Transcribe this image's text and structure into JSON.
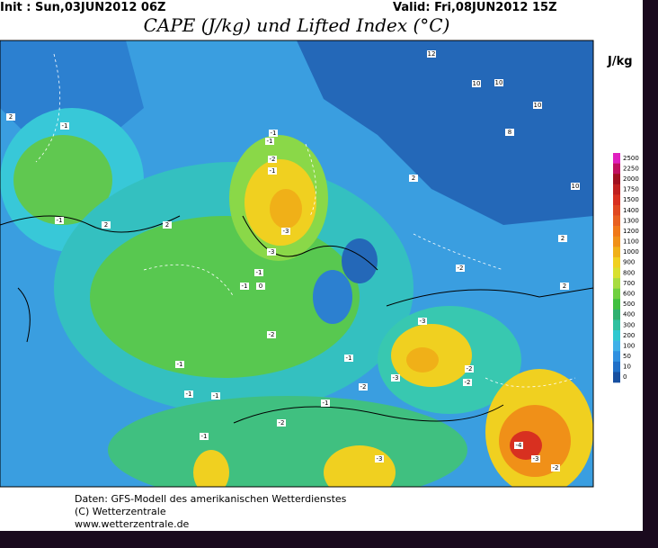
{
  "header": {
    "init": "Init : Sun,03JUN2012 06Z",
    "valid": "Valid: Fri,08JUN2012 15Z",
    "title": "CAPE (J/kg) und Lifted Index (°C)"
  },
  "legend": {
    "unit": "J/kg",
    "levels": [
      2500,
      2250,
      2000,
      1750,
      1500,
      1400,
      1300,
      1200,
      1100,
      1000,
      900,
      800,
      700,
      600,
      500,
      400,
      300,
      200,
      100,
      50,
      10,
      0
    ],
    "colors": [
      "#e020c0",
      "#c01060",
      "#a01020",
      "#c02020",
      "#d83020",
      "#e04820",
      "#e86020",
      "#f07818",
      "#f09018",
      "#f0b018",
      "#f0d020",
      "#d8e030",
      "#a8dc40",
      "#70d040",
      "#40c040",
      "#30b070",
      "#30c0a0",
      "#30c8d0",
      "#40b0e8",
      "#3090e0",
      "#2070c8",
      "#1850a0"
    ]
  },
  "map": {
    "contour_labels": [
      12,
      10,
      10,
      10,
      8,
      2,
      2,
      -1,
      -1,
      -1,
      2,
      -1,
      -1,
      -2,
      -3,
      -3,
      -1,
      -1,
      0,
      -1,
      -2,
      -1,
      -2,
      -3,
      -2,
      -1,
      -2,
      -3,
      -1,
      -2,
      -3,
      -2,
      -1,
      -1,
      -4,
      -3,
      -2,
      2,
      2,
      2,
      10
    ]
  },
  "footer": {
    "line1": "Daten: GFS-Modell des amerikanischen Wetterdienstes",
    "line2": "(C) Wetterzentrale",
    "line3": "www.wetterzentrale.de"
  }
}
